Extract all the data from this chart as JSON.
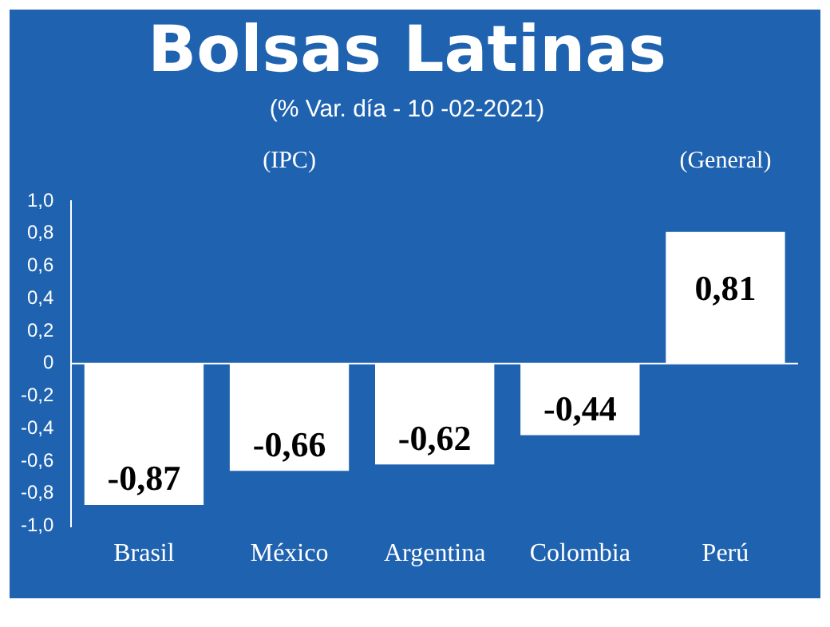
{
  "chart_data": {
    "type": "bar",
    "title": "Bolsas Latinas",
    "subtitle": "(% Var. día - 10 -02-2021)",
    "categories": [
      "Brasil",
      "México",
      "Argentina",
      "Colombia",
      "Perú"
    ],
    "values": [
      -0.87,
      -0.66,
      -0.62,
      -0.44,
      0.81
    ],
    "value_labels": [
      "-0,87",
      "-0,66",
      "-0,62",
      "-0,44",
      "0,81"
    ],
    "color": "#ffffff",
    "ylim": [
      -1.0,
      1.0
    ],
    "yticks": [
      {
        "value": -1.0,
        "label": "-1,0"
      },
      {
        "value": -0.8,
        "label": "-0,8"
      },
      {
        "value": -0.6,
        "label": "-0,6"
      },
      {
        "value": -0.4,
        "label": "-0,4"
      },
      {
        "value": -0.2,
        "label": "-0,2"
      },
      0,
      {
        "value": 0.2,
        "label": "0,2"
      },
      {
        "value": 0.4,
        "label": "0,4"
      },
      {
        "value": 0.6,
        "label": "0,6"
      },
      {
        "value": 0.8,
        "label": "0,8"
      },
      {
        "value": 1.0,
        "label": "1,0"
      }
    ],
    "annotations": [
      "(IPC)",
      "(General)"
    ],
    "ref_lines": [
      {
        "axis": "y",
        "value": 0,
        "color": "#ffffff"
      }
    ],
    "grid": false,
    "legend": false
  }
}
